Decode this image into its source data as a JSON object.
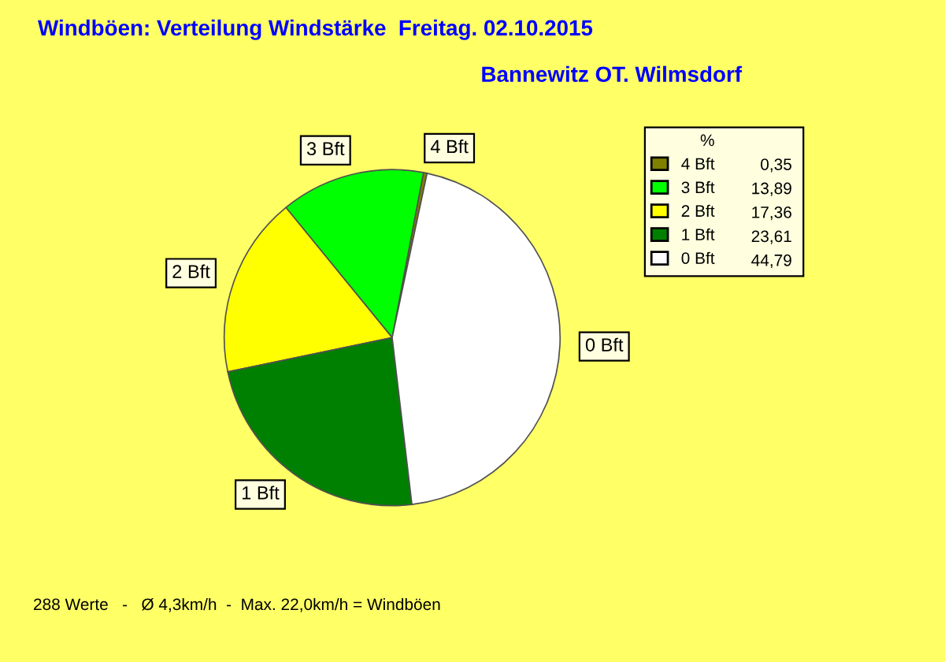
{
  "chart_data": {
    "type": "pie",
    "title": "Windböen: Verteilung Windstärke  Freitag. 02.10.2015",
    "subtitle": "Bannewitz OT. Wilmsdorf",
    "categories": [
      "4 Bft",
      "3 Bft",
      "2 Bft",
      "1 Bft",
      "0 Bft"
    ],
    "values": [
      0.35,
      13.89,
      17.36,
      23.61,
      44.79
    ],
    "value_labels": [
      "0,35",
      "13,89",
      "17,36",
      "23,61",
      "44,79"
    ],
    "colors": [
      "#808000",
      "#00ff00",
      "#ffff00",
      "#008000",
      "#ffffff"
    ],
    "legend_title": "%",
    "legend": "top right",
    "annotations": [
      "288 Werte   -   Ø 4,3km/h  -  Max. 22,0km/h = Windböen"
    ]
  }
}
